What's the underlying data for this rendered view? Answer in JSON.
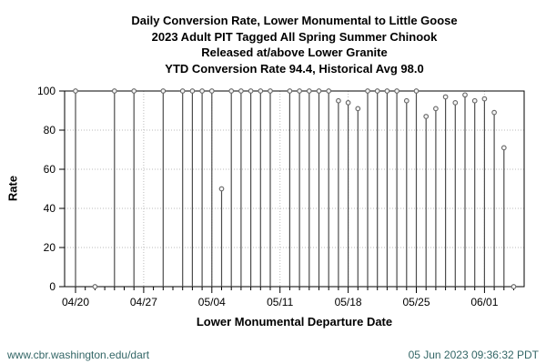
{
  "colors": {
    "footer_text": "#336666",
    "axis": "#000000",
    "grid": "#bbbbbb",
    "stem": "#4d4d4d",
    "marker_stroke": "#666666",
    "marker_fill": "#f5f5f5"
  },
  "chart_data": {
    "type": "stem",
    "title_lines": [
      "Daily Conversion Rate, Lower Monumental to Little Goose",
      "2023 Adult PIT Tagged All Spring Summer Chinook",
      "Released at/above Lower Granite",
      "YTD Conversion Rate 94.4, Historical Avg 98.0"
    ],
    "xlabel": "Lower Monumental Departure Date",
    "ylabel": "Rate",
    "ylim": [
      0,
      100
    ],
    "yticks": [
      0,
      20,
      40,
      60,
      80,
      100
    ],
    "xtick_labels": [
      "04/20",
      "04/27",
      "05/04",
      "05/11",
      "05/18",
      "05/25",
      "06/01"
    ],
    "grid": "dotted, at weekly x ticks and y ticks 20-80",
    "legend": "none",
    "points": [
      {
        "date": "04/20",
        "value": 100
      },
      {
        "date": "04/22",
        "value": 0
      },
      {
        "date": "04/24",
        "value": 100
      },
      {
        "date": "04/26",
        "value": 100
      },
      {
        "date": "04/29",
        "value": 100
      },
      {
        "date": "05/01",
        "value": 100
      },
      {
        "date": "05/02",
        "value": 100
      },
      {
        "date": "05/03",
        "value": 100
      },
      {
        "date": "05/04",
        "value": 100
      },
      {
        "date": "05/05",
        "value": 50
      },
      {
        "date": "05/06",
        "value": 100
      },
      {
        "date": "05/07",
        "value": 100
      },
      {
        "date": "05/08",
        "value": 100
      },
      {
        "date": "05/09",
        "value": 100
      },
      {
        "date": "05/10",
        "value": 100
      },
      {
        "date": "05/12",
        "value": 100
      },
      {
        "date": "05/13",
        "value": 100
      },
      {
        "date": "05/14",
        "value": 100
      },
      {
        "date": "05/15",
        "value": 100
      },
      {
        "date": "05/16",
        "value": 100
      },
      {
        "date": "05/17",
        "value": 95
      },
      {
        "date": "05/18",
        "value": 94
      },
      {
        "date": "05/19",
        "value": 91
      },
      {
        "date": "05/20",
        "value": 100
      },
      {
        "date": "05/21",
        "value": 100
      },
      {
        "date": "05/22",
        "value": 100
      },
      {
        "date": "05/23",
        "value": 100
      },
      {
        "date": "05/24",
        "value": 95
      },
      {
        "date": "05/25",
        "value": 100
      },
      {
        "date": "05/26",
        "value": 87
      },
      {
        "date": "05/27",
        "value": 91
      },
      {
        "date": "05/28",
        "value": 97
      },
      {
        "date": "05/29",
        "value": 94
      },
      {
        "date": "05/30",
        "value": 98
      },
      {
        "date": "05/31",
        "value": 95
      },
      {
        "date": "06/01",
        "value": 96
      },
      {
        "date": "06/02",
        "value": 89
      },
      {
        "date": "06/03",
        "value": 71
      },
      {
        "date": "06/04",
        "value": 0
      }
    ]
  },
  "footer": {
    "url": "www.cbr.washington.edu/dart",
    "timestamp": "05 Jun 2023 09:36:32 PDT"
  }
}
